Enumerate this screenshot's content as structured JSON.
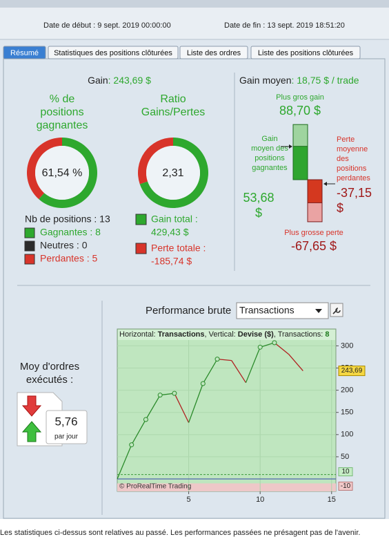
{
  "header": {
    "start": "Date de début : 9 sept. 2019 00:00:00",
    "end": "Date de fin : 13 sept. 2019 18:51:20"
  },
  "tabs": [
    "Résumé",
    "Statistiques des positions clôturées",
    "Liste des ordres",
    "Liste des positions clôturées"
  ],
  "gain": {
    "label": "Gain",
    "value": ": 243,69 $"
  },
  "gain_average_title": {
    "label": "Gain moyen",
    "value": ": 18,75 $ / trade"
  },
  "colors": {
    "green": "#2ea82e",
    "red": "#d8342a",
    "neutral": "#2b2b2b"
  },
  "donuts": [
    {
      "title_lines": [
        "% de",
        "positions",
        "gagnantes"
      ],
      "center_label": "61,54 %",
      "values": [
        61.54,
        38.46
      ]
    },
    {
      "title_lines": [
        "Ratio",
        "Gains/Pertes"
      ],
      "center_label": "2,31",
      "values": [
        429.43,
        185.74
      ]
    }
  ],
  "positions": {
    "total": "Nb de positions : 13",
    "items": [
      {
        "label": "Gagnantes : 8",
        "color": "#2ea82e"
      },
      {
        "label": "Neutres : 0",
        "color": "#2b2b2b"
      },
      {
        "label": "Perdantes : 5",
        "color": "#d8342a"
      }
    ]
  },
  "totals": [
    {
      "label": "Gain total :",
      "value": "429,43 $",
      "color": "#2ea82e"
    },
    {
      "label": "Perte totale :",
      "value": "-185,74 $",
      "color": "#d8342a"
    }
  ],
  "gain_moyen": {
    "max_gain_title": "Plus gros gain",
    "max_gain_label": "88,70 $",
    "max_gain": 88.7,
    "avg_gain_lines": [
      "Gain",
      "moyen des",
      "positions",
      "gagnantes"
    ],
    "avg_gain_label": [
      "53,68",
      "$"
    ],
    "avg_gain": 53.68,
    "avg_loss_lines": [
      "Perte",
      "moyenne",
      "des",
      "positions",
      "perdantes"
    ],
    "avg_loss_label": [
      "-37,15",
      "$"
    ],
    "avg_loss": -37.15,
    "max_loss_title": "Plus grosse perte",
    "max_loss_label": "-67,65 $",
    "max_loss": -67.65
  },
  "orders": {
    "title_lines": [
      "Moy d'ordres",
      "exécutés :"
    ],
    "value": "5,76",
    "unit": "par jour"
  },
  "chart_data": {
    "type": "line",
    "title": "Performance brute",
    "selector": "Transactions",
    "header_parts": [
      "Horizontal: ",
      "Transactions",
      ", Vertical: ",
      "Devise ($)",
      ", Transactions: ",
      "8"
    ],
    "watermark": "© ProRealTime Trading",
    "x": [
      0,
      1,
      2,
      3,
      4,
      5,
      6,
      7,
      8,
      9,
      10,
      11,
      12,
      13
    ],
    "values": [
      0,
      77,
      134,
      189,
      193,
      127,
      215,
      270,
      267,
      217,
      297,
      307,
      281,
      243.69
    ],
    "last_value_label": "243,69",
    "xlim": [
      0,
      15.3
    ],
    "xticks": [
      5,
      10,
      15
    ],
    "ylim": [
      -28,
      338
    ],
    "yticks": [
      50,
      100,
      150,
      200,
      250,
      300
    ],
    "thresholds": [
      10,
      -10
    ],
    "color_up": "#2a8a2a",
    "color_down": "#b02020",
    "grid": true
  },
  "footer": "Les statistiques ci-dessus sont relatives au passé. Les performances passées ne présagent pas de l'avenir."
}
